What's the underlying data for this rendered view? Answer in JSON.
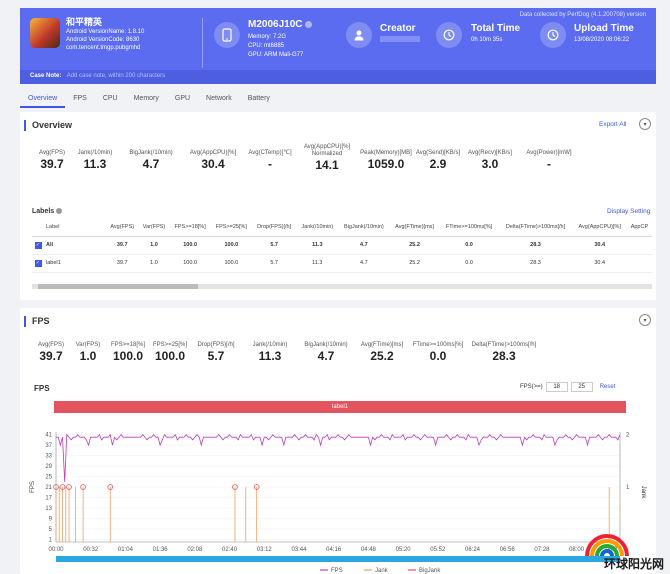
{
  "header": {
    "collected_by": "Data collected by PerfDog (4.1.200708) version",
    "app": {
      "name": "和平精英",
      "version_name": "Android VersionName: 1.8.10",
      "version_code": "Android VersionCode: 8630",
      "package": "com.tencent.tmgp.pubgmhd"
    },
    "device": {
      "model": "M2006J10C",
      "memory": "Memory: 7.2G",
      "cpu": "CPU: mt6885",
      "gpu": "GPU: ARM Mali-G77"
    },
    "creator": {
      "label": "Creator",
      "value": ""
    },
    "total_time": {
      "label": "Total Time",
      "value": "0h 10m 35s"
    },
    "upload_time": {
      "label": "Upload Time",
      "value": "13/08/2020 08:06:22"
    },
    "case_note": {
      "label": "Case Note:",
      "placeholder": "Add case note, within 200 characters"
    }
  },
  "tabs": [
    "Overview",
    "FPS",
    "CPU",
    "Memory",
    "GPU",
    "Network",
    "Battery"
  ],
  "overview": {
    "title": "Overview",
    "export": "Export All",
    "metrics": [
      {
        "label": "Avg(FPS)",
        "value": "39.7"
      },
      {
        "label": "Jank(/10min)",
        "value": "11.3"
      },
      {
        "label": "BigJank(/10min)",
        "value": "4.7"
      },
      {
        "label": "Avg(AppCPU)[%]",
        "value": "30.4"
      },
      {
        "label": "Avg(CTemp)[℃]",
        "value": "-"
      },
      {
        "label": "Avg(AppCPU)[%] Normalized",
        "value": "14.1"
      },
      {
        "label": "Peak(Memory)[MB]",
        "value": "1059.0"
      },
      {
        "label": "Avg(Send)[KB/s]",
        "value": "2.9"
      },
      {
        "label": "Avg(Recv)[KB/s]",
        "value": "3.0"
      },
      {
        "label": "Avg(Power)[mW]",
        "value": "-"
      }
    ],
    "labels_title": "Labels",
    "display_setting": "Display Setting",
    "table": {
      "columns": [
        "Label",
        "Avg(FPS)",
        "Var(FPS)",
        "FPS>=18[%]",
        "FPS>=25[%]",
        "Drop(FPS)[/h]",
        "Jank(/10min)",
        "BigJank(/10min)",
        "Avg(FTime)[ms]",
        "FTime>=100ms[%]",
        "Delta(FTime)>100ms[/h]",
        "Avg(AppCPU)[%]",
        "AppCP"
      ],
      "rows": [
        [
          "All",
          "39.7",
          "1.0",
          "100.0",
          "100.0",
          "5.7",
          "11.3",
          "4.7",
          "25.2",
          "0.0",
          "28.3",
          "30.4",
          ""
        ],
        [
          "label1",
          "39.7",
          "1.0",
          "100.0",
          "100.0",
          "5.7",
          "11.3",
          "4.7",
          "25.2",
          "0.0",
          "28.3",
          "30.4",
          ""
        ]
      ]
    }
  },
  "fps_section": {
    "title": "FPS",
    "metrics": [
      {
        "label": "Avg(FPS)",
        "value": "39.7"
      },
      {
        "label": "Var(FPS)",
        "value": "1.0"
      },
      {
        "label": "FPS>=18[%]",
        "value": "100.0"
      },
      {
        "label": "FPS>=25[%]",
        "value": "100.0"
      },
      {
        "label": "Drop(FPS)[/h]",
        "value": "5.7"
      },
      {
        "label": "Jank(/10min)",
        "value": "11.3"
      },
      {
        "label": "BigJank(/10min)",
        "value": "4.7"
      },
      {
        "label": "Avg(FTime)[ms]",
        "value": "25.2"
      },
      {
        "label": "FTime>=100ms[%]",
        "value": "0.0"
      },
      {
        "label": "Delta(FTime)>100ms[/h]",
        "value": "28.3"
      }
    ],
    "chart_title": "FPS",
    "filter_label": "FPS(>=)",
    "filter_values": [
      "18",
      "25"
    ],
    "reset": "Reset",
    "label_bar": "label1"
  },
  "chart_data": {
    "type": "line",
    "title": "FPS",
    "ylabel": "FPS",
    "y2label": "Jank",
    "y_ticks": [
      "41",
      "37",
      "33",
      "29",
      "25",
      "21",
      "17",
      "13",
      "9",
      "5",
      "1"
    ],
    "y2_ticks": [
      "2",
      "1"
    ],
    "ylim": [
      0,
      42
    ],
    "x_ticks": [
      "00:00",
      "00:32",
      "01:04",
      "01:36",
      "02:08",
      "02:40",
      "03:12",
      "03:44",
      "04:16",
      "04:48",
      "05:20",
      "05:52",
      "06:24",
      "06:56",
      "07:28",
      "08:00",
      "08:3"
    ],
    "series": [
      {
        "name": "FPS",
        "color": "#c03bb7"
      },
      {
        "name": "Jank",
        "color": "#f0a060"
      },
      {
        "name": "BigJank",
        "color": "#e2545e"
      }
    ],
    "fps_base": 40,
    "fps_dips_x_sec": [
      4,
      8,
      30,
      52,
      96,
      134,
      165,
      190,
      210,
      244,
      290,
      350,
      390,
      430,
      460,
      490
    ],
    "jank_events_x_sec": [
      0,
      3,
      6,
      9,
      12,
      18,
      25,
      50,
      165,
      175,
      185,
      510
    ],
    "bigjank_events_x_sec": [
      0,
      6,
      12,
      25,
      50,
      165,
      185
    ],
    "x_max_sec": 520
  },
  "watermark": "环球阳光网"
}
